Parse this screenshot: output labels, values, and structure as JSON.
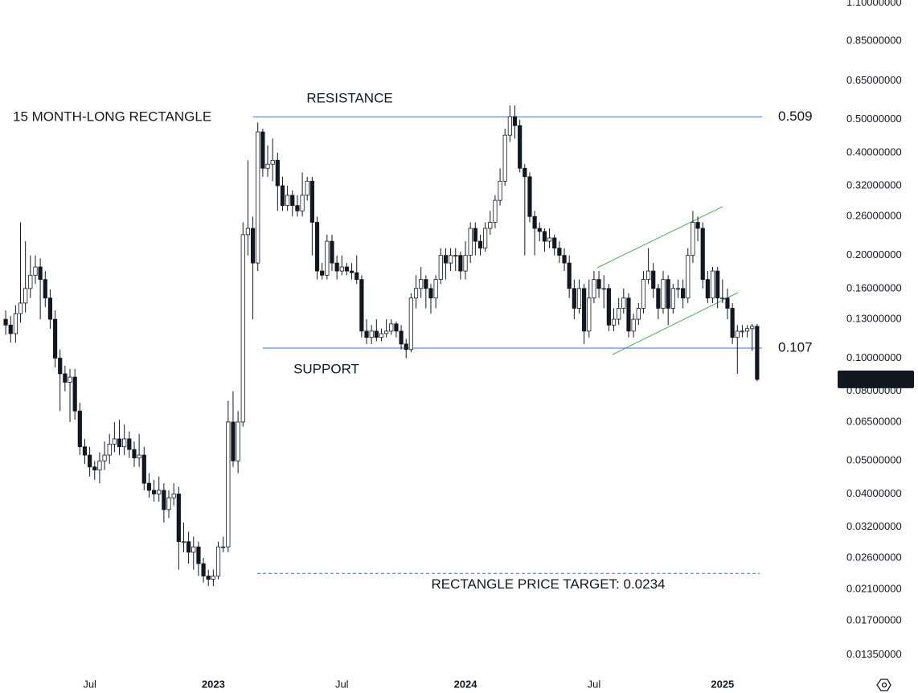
{
  "chart_data": {
    "type": "candlestick",
    "title": "15 MONTH-LONG RECTANGLE",
    "log_scale": true,
    "grid": false,
    "up_color": "#ffffff",
    "down_color": "#131722",
    "categories": [
      null,
      null,
      null,
      null,
      null,
      null,
      null,
      null,
      null,
      null,
      null,
      null,
      null,
      null,
      null,
      null,
      null,
      "Jul",
      null,
      null,
      null,
      null,
      null,
      null,
      null,
      null,
      null,
      null,
      null,
      null,
      null,
      null,
      null,
      null,
      null,
      null,
      null,
      null,
      null,
      null,
      null,
      null,
      "2023",
      null,
      null,
      null,
      null,
      null,
      null,
      null,
      null,
      null,
      null,
      null,
      null,
      null,
      null,
      null,
      null,
      null,
      null,
      null,
      null,
      null,
      null,
      null,
      null,
      null,
      "Jul",
      null,
      null,
      null,
      null,
      null,
      null,
      null,
      null,
      null,
      null,
      null,
      null,
      null,
      null,
      null,
      null,
      null,
      null,
      null,
      null,
      null,
      null,
      null,
      null,
      "2024",
      null,
      null,
      null,
      null,
      null,
      null,
      null,
      null,
      null,
      null,
      null,
      null,
      null,
      null,
      null,
      null,
      null,
      null,
      null,
      null,
      null,
      null,
      null,
      null,
      null,
      "Jul",
      null,
      null,
      null,
      null,
      null,
      null,
      null,
      null,
      null,
      null,
      null,
      null,
      null,
      null,
      null,
      null,
      null,
      null,
      null,
      null,
      null,
      null,
      null,
      null,
      null,
      "2025",
      null,
      null,
      null,
      null,
      null,
      null,
      null
    ],
    "open": [
      0.13,
      0.125,
      0.118,
      0.135,
      0.145,
      0.16,
      0.175,
      0.185,
      0.17,
      0.15,
      0.13,
      0.1,
      0.09,
      0.085,
      0.088,
      0.07,
      0.055,
      0.052,
      0.048,
      0.047,
      0.05,
      0.052,
      0.056,
      0.058,
      0.055,
      0.058,
      0.054,
      0.051,
      0.052,
      0.043,
      0.041,
      0.04,
      0.041,
      0.036,
      0.039,
      0.04,
      0.029,
      0.029,
      0.027,
      0.028,
      0.025,
      0.023,
      0.0225,
      0.023,
      0.028,
      0.028,
      0.065,
      0.05,
      0.065,
      0.23,
      0.24,
      0.19,
      0.46,
      0.36,
      0.37,
      0.38,
      0.32,
      0.28,
      0.3,
      0.28,
      0.27,
      0.3,
      0.33,
      0.25,
      0.18,
      0.175,
      0.22,
      0.19,
      0.18,
      0.185,
      0.18,
      0.178,
      0.17,
      0.12,
      0.115,
      0.12,
      0.115,
      0.118,
      0.12,
      0.126,
      0.12,
      0.11,
      0.106,
      0.15,
      0.16,
      0.17,
      0.16,
      0.15,
      0.17,
      0.2,
      0.19,
      0.2,
      0.2,
      0.18,
      0.2,
      0.24,
      0.22,
      0.21,
      0.24,
      0.25,
      0.29,
      0.33,
      0.45,
      0.51,
      0.48,
      0.36,
      0.34,
      0.26,
      0.24,
      0.235,
      0.22,
      0.225,
      0.21,
      0.2,
      0.19,
      0.16,
      0.14,
      0.16,
      0.12,
      0.15,
      0.17,
      0.16,
      0.16,
      0.125,
      0.13,
      0.14,
      0.15,
      0.12,
      0.13,
      0.14,
      0.17,
      0.18,
      0.16,
      0.14,
      0.17,
      0.14,
      0.16,
      0.16,
      0.15,
      0.2,
      0.25,
      0.24,
      0.17,
      0.15,
      0.18,
      0.15,
      0.15,
      0.14,
      0.115,
      0.12,
      0.12,
      0.122,
      0.124
    ],
    "high": [
      0.138,
      0.133,
      0.143,
      0.25,
      0.22,
      0.2,
      0.2,
      0.196,
      0.18,
      0.159,
      0.138,
      0.106,
      0.095,
      0.093,
      0.093,
      0.074,
      0.058,
      0.055,
      0.05,
      0.053,
      0.057,
      0.06,
      0.065,
      0.066,
      0.064,
      0.061,
      0.057,
      0.06,
      0.055,
      0.046,
      0.044,
      0.045,
      0.043,
      0.041,
      0.043,
      0.042,
      0.033,
      0.031,
      0.03,
      0.029,
      0.026,
      0.024,
      0.024,
      0.029,
      0.03,
      0.075,
      0.08,
      0.07,
      0.25,
      0.38,
      0.26,
      0.49,
      0.47,
      0.42,
      0.44,
      0.4,
      0.34,
      0.32,
      0.31,
      0.3,
      0.35,
      0.34,
      0.34,
      0.26,
      0.19,
      0.23,
      0.23,
      0.2,
      0.2,
      0.19,
      0.19,
      0.2,
      0.175,
      0.13,
      0.125,
      0.13,
      0.122,
      0.13,
      0.13,
      0.128,
      0.125,
      0.114,
      0.155,
      0.175,
      0.185,
      0.175,
      0.165,
      0.175,
      0.21,
      0.21,
      0.21,
      0.21,
      0.205,
      0.22,
      0.25,
      0.25,
      0.23,
      0.25,
      0.27,
      0.3,
      0.36,
      0.47,
      0.55,
      0.55,
      0.5,
      0.37,
      0.35,
      0.27,
      0.25,
      0.24,
      0.24,
      0.23,
      0.22,
      0.21,
      0.2,
      0.17,
      0.17,
      0.165,
      0.17,
      0.18,
      0.18,
      0.175,
      0.165,
      0.14,
      0.15,
      0.16,
      0.155,
      0.135,
      0.145,
      0.18,
      0.21,
      0.19,
      0.165,
      0.18,
      0.175,
      0.165,
      0.17,
      0.17,
      0.21,
      0.27,
      0.26,
      0.25,
      0.18,
      0.185,
      0.185,
      0.17,
      0.16,
      0.145,
      0.125,
      0.125,
      0.125,
      0.126,
      0.126
    ],
    "low": [
      0.117,
      0.111,
      0.111,
      0.127,
      0.136,
      0.15,
      0.165,
      0.13,
      0.141,
      0.122,
      0.094,
      0.07,
      0.08,
      0.065,
      0.066,
      0.052,
      0.049,
      0.045,
      0.044,
      0.043,
      0.047,
      0.049,
      0.053,
      0.052,
      0.052,
      0.051,
      0.048,
      0.048,
      0.041,
      0.039,
      0.038,
      0.038,
      0.033,
      0.034,
      0.037,
      0.024,
      0.027,
      0.025,
      0.024,
      0.023,
      0.022,
      0.0215,
      0.0215,
      0.0225,
      0.027,
      0.027,
      0.048,
      0.046,
      0.063,
      0.2,
      0.13,
      0.18,
      0.34,
      0.34,
      0.33,
      0.27,
      0.27,
      0.27,
      0.26,
      0.26,
      0.26,
      0.29,
      0.2,
      0.17,
      0.17,
      0.17,
      0.18,
      0.17,
      0.175,
      0.175,
      0.17,
      0.165,
      0.115,
      0.11,
      0.11,
      0.112,
      0.112,
      0.115,
      0.117,
      0.115,
      0.106,
      0.1,
      0.104,
      0.14,
      0.15,
      0.14,
      0.135,
      0.14,
      0.165,
      0.17,
      0.18,
      0.18,
      0.17,
      0.17,
      0.19,
      0.2,
      0.2,
      0.205,
      0.23,
      0.24,
      0.28,
      0.32,
      0.43,
      0.44,
      0.35,
      0.2,
      0.25,
      0.2,
      0.22,
      0.205,
      0.21,
      0.2,
      0.19,
      0.18,
      0.15,
      0.13,
      0.135,
      0.11,
      0.115,
      0.145,
      0.15,
      0.14,
      0.12,
      0.12,
      0.125,
      0.135,
      0.115,
      0.115,
      0.125,
      0.135,
      0.165,
      0.15,
      0.13,
      0.135,
      0.125,
      0.135,
      0.15,
      0.14,
      0.145,
      0.19,
      0.22,
      0.16,
      0.145,
      0.145,
      0.14,
      0.145,
      0.13,
      0.11,
      0.09,
      0.115,
      0.115,
      0.105,
      0.0855
    ],
    "close": [
      0.125,
      0.118,
      0.135,
      0.145,
      0.16,
      0.175,
      0.185,
      0.17,
      0.15,
      0.13,
      0.1,
      0.09,
      0.085,
      0.088,
      0.07,
      0.055,
      0.052,
      0.048,
      0.047,
      0.05,
      0.052,
      0.056,
      0.058,
      0.055,
      0.058,
      0.054,
      0.051,
      0.052,
      0.043,
      0.041,
      0.04,
      0.041,
      0.036,
      0.039,
      0.04,
      0.029,
      0.029,
      0.027,
      0.028,
      0.025,
      0.023,
      0.0225,
      0.023,
      0.028,
      0.028,
      0.065,
      0.05,
      0.065,
      0.23,
      0.24,
      0.19,
      0.46,
      0.36,
      0.37,
      0.38,
      0.32,
      0.28,
      0.3,
      0.28,
      0.27,
      0.3,
      0.33,
      0.25,
      0.18,
      0.175,
      0.22,
      0.19,
      0.18,
      0.185,
      0.18,
      0.178,
      0.17,
      0.12,
      0.115,
      0.12,
      0.115,
      0.118,
      0.12,
      0.126,
      0.12,
      0.11,
      0.106,
      0.15,
      0.16,
      0.17,
      0.16,
      0.15,
      0.17,
      0.2,
      0.19,
      0.2,
      0.2,
      0.18,
      0.2,
      0.24,
      0.22,
      0.21,
      0.24,
      0.25,
      0.29,
      0.33,
      0.45,
      0.51,
      0.48,
      0.36,
      0.34,
      0.26,
      0.24,
      0.235,
      0.22,
      0.225,
      0.21,
      0.2,
      0.19,
      0.16,
      0.14,
      0.16,
      0.12,
      0.15,
      0.17,
      0.16,
      0.16,
      0.125,
      0.13,
      0.14,
      0.15,
      0.12,
      0.13,
      0.14,
      0.17,
      0.18,
      0.16,
      0.14,
      0.17,
      0.14,
      0.16,
      0.16,
      0.15,
      0.2,
      0.25,
      0.24,
      0.17,
      0.15,
      0.18,
      0.15,
      0.15,
      0.14,
      0.115,
      0.12,
      0.12,
      0.122,
      0.124,
      0.08663901
    ],
    "ylim": [
      0.0119,
      1.12
    ],
    "yticks": [
      {
        "value": 1.1,
        "label": "1.10000000"
      },
      {
        "value": 0.85,
        "label": "0.85000000"
      },
      {
        "value": 0.65,
        "label": "0.65000000"
      },
      {
        "value": 0.5,
        "label": "0.50000000"
      },
      {
        "value": 0.4,
        "label": "0.40000000"
      },
      {
        "value": 0.32,
        "label": "0.32000000"
      },
      {
        "value": 0.26,
        "label": "0.26000000"
      },
      {
        "value": 0.2,
        "label": "0.20000000"
      },
      {
        "value": 0.16,
        "label": "0.16000000"
      },
      {
        "value": 0.13,
        "label": "0.13000000"
      },
      {
        "value": 0.1,
        "label": "0.10000000"
      },
      {
        "value": 0.08,
        "label": "0.08000000"
      },
      {
        "value": 0.065,
        "label": "0.06500000"
      },
      {
        "value": 0.05,
        "label": "0.05000000"
      },
      {
        "value": 0.04,
        "label": "0.04000000"
      },
      {
        "value": 0.032,
        "label": "0.03200000"
      },
      {
        "value": 0.026,
        "label": "0.02600000"
      },
      {
        "value": 0.021,
        "label": "0.02100000"
      },
      {
        "value": 0.017,
        "label": "0.01700000"
      },
      {
        "value": 0.0135,
        "label": "0.01350000"
      }
    ],
    "levels": [
      {
        "name": "RESISTANCE",
        "value": 0.509,
        "color": "#e0394b"
      },
      {
        "name": "SUPPORT",
        "value": 0.107,
        "color": "#43a047"
      }
    ],
    "target": {
      "label": "RECTANGLE PRICE TARGET: 0.0234",
      "value": 0.0234
    },
    "annotation_color": "#3d6ee0"
  }
}
